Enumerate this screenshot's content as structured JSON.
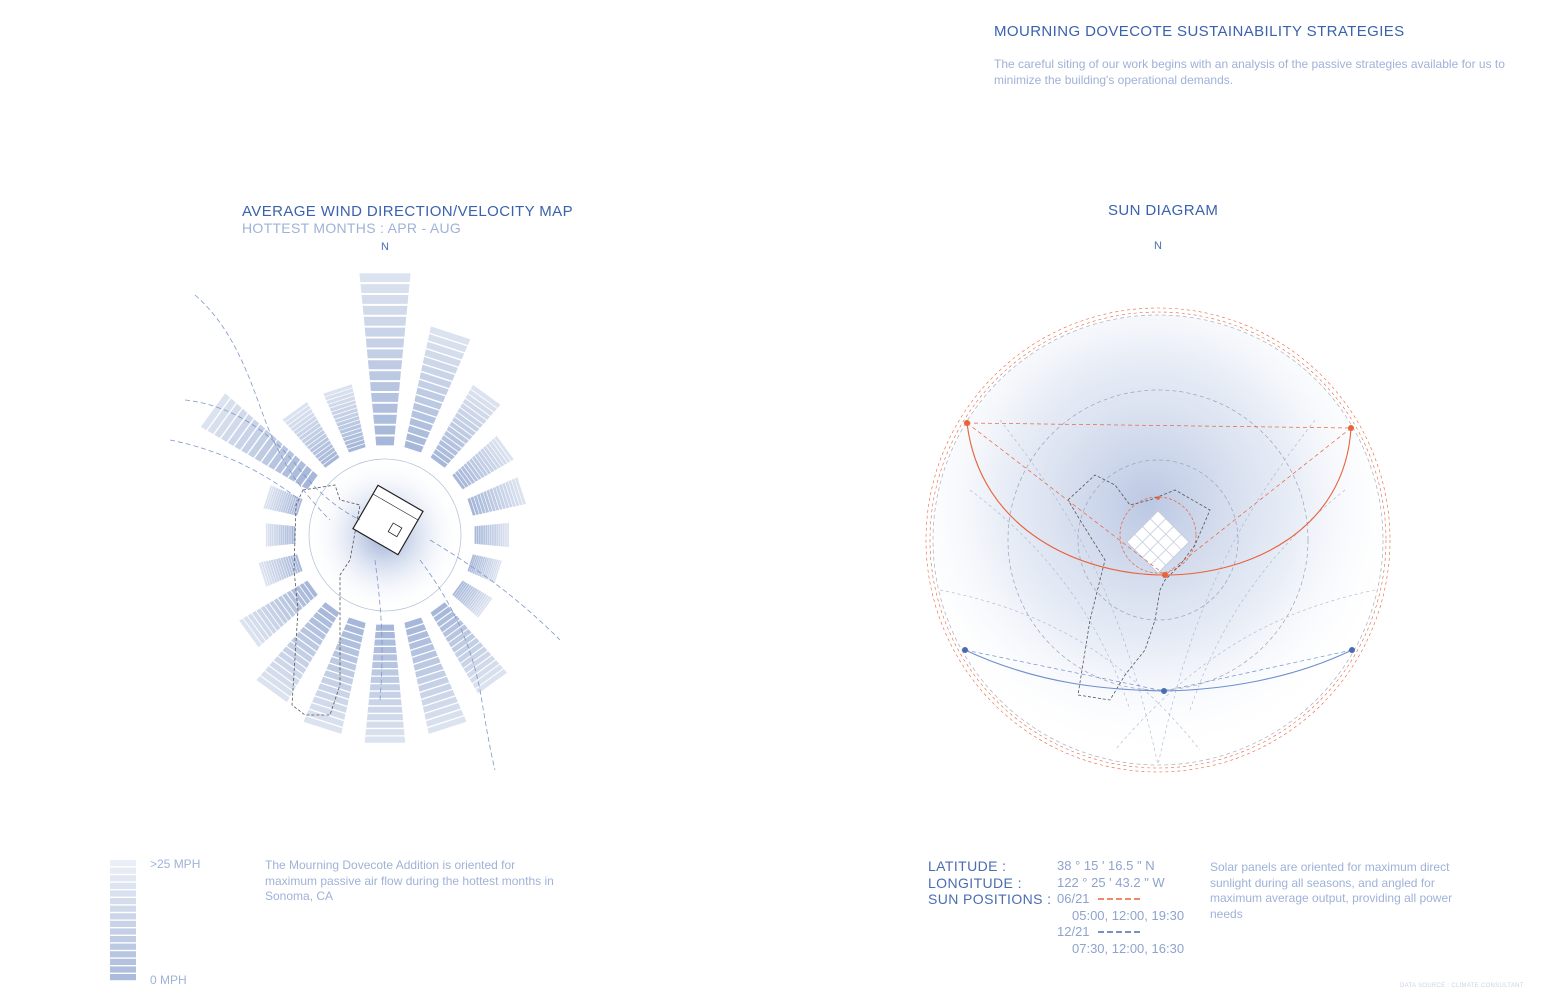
{
  "header": {
    "title": "MOURNING DOVECOTE SUSTAINABILITY STRATEGIES",
    "intro": "The careful siting of our work begins with an analysis of the passive strategies available for us to minimize the building's operational demands."
  },
  "wind_map": {
    "title": "AVERAGE WIND DIRECTION/VELOCITY MAP",
    "subtitle": "HOTTEST MONTHS : APR - AUG",
    "north_label": "N",
    "legend": {
      "max_label": ">25 MPH",
      "min_label": "0 MPH",
      "steps": 16
    },
    "description": "The Mourning Dovecote Addition is oriented for maximum passive air flow during the hottest months in Sonoma, CA"
  },
  "sun_diagram": {
    "title": "SUN DIAGRAM",
    "north_label": "N",
    "latitude_label": "LATITUDE :",
    "latitude_value": "38 ° 15 ' 16.5 \" N",
    "longitude_label": "LONGITUDE :",
    "longitude_value": "122 ° 25 ' 43.2 \" W",
    "sun_positions_label": "SUN POSITIONS :",
    "summer_date": "06/21",
    "summer_times": "05:00, 12:00, 19:30",
    "winter_date": "12/21",
    "winter_times": "07:30, 12:00, 16:30",
    "description": "Solar panels are oriented for maximum direct sunlight during all seasons, and angled for maximum average output, providing all power needs",
    "summer_color": "#e8623a",
    "winter_color": "#6f8fcf"
  },
  "footer": {
    "data_source": "DATA SOURCE : CLIMATE CONSULTANT"
  },
  "colors": {
    "accent": "#3b62ad",
    "light_text": "#9fb2d8",
    "wind_bar": "#a9b9d8"
  }
}
